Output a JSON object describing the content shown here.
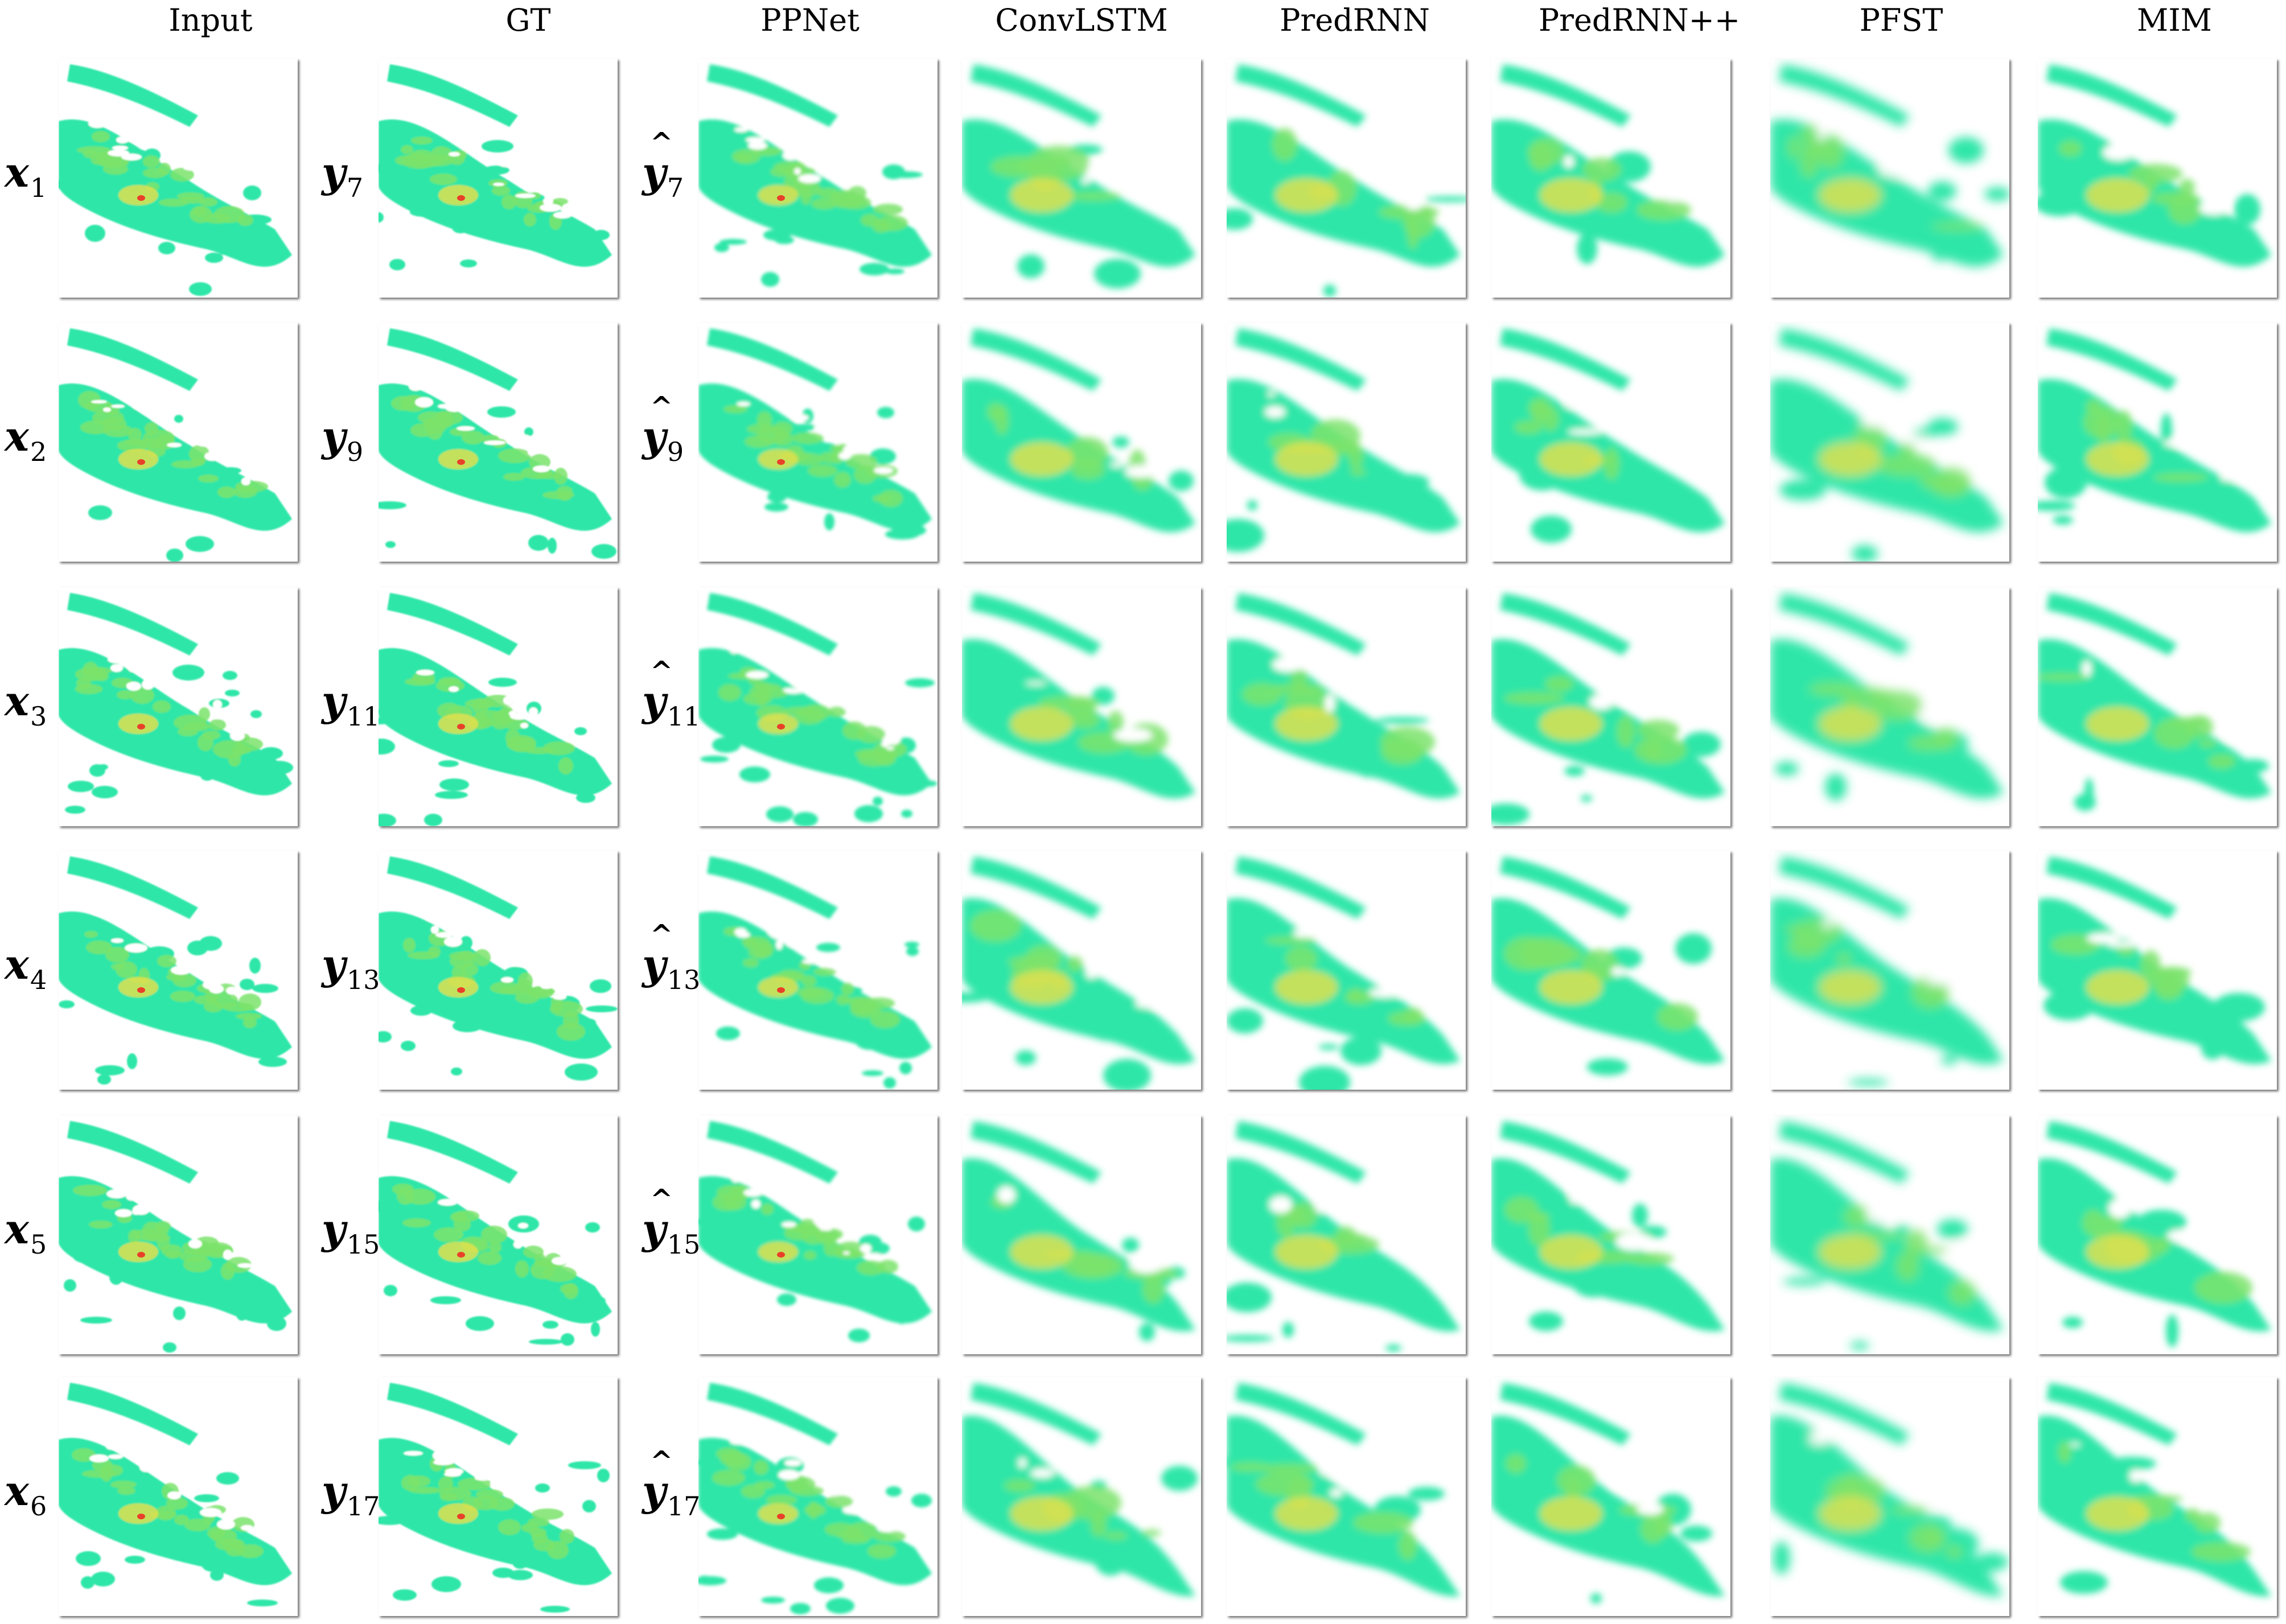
{
  "columns": [
    {
      "label": "Input"
    },
    {
      "label": "GT"
    },
    {
      "label": "PPNet"
    },
    {
      "label": "ConvLSTM"
    },
    {
      "label": "PredRNN"
    },
    {
      "label": "PredRNN++"
    },
    {
      "label": "PFST"
    },
    {
      "label": "MIM"
    }
  ],
  "rows": [
    {
      "input": {
        "sym": "x",
        "sub": "1"
      },
      "gt": {
        "sym": "y",
        "sub": "7"
      },
      "pred": {
        "sym": "y",
        "sub": "7"
      }
    },
    {
      "input": {
        "sym": "x",
        "sub": "2"
      },
      "gt": {
        "sym": "y",
        "sub": "9"
      },
      "pred": {
        "sym": "y",
        "sub": "9"
      }
    },
    {
      "input": {
        "sym": "x",
        "sub": "3"
      },
      "gt": {
        "sym": "y",
        "sub": "11"
      },
      "pred": {
        "sym": "y",
        "sub": "11"
      }
    },
    {
      "input": {
        "sym": "x",
        "sub": "4"
      },
      "gt": {
        "sym": "y",
        "sub": "13"
      },
      "pred": {
        "sym": "y",
        "sub": "13"
      }
    },
    {
      "input": {
        "sym": "x",
        "sub": "5"
      },
      "gt": {
        "sym": "y",
        "sub": "15"
      },
      "pred": {
        "sym": "y",
        "sub": "15"
      }
    },
    {
      "input": {
        "sym": "x",
        "sub": "6"
      },
      "gt": {
        "sym": "y",
        "sub": "17"
      },
      "pred": {
        "sym": "y",
        "sub": "17"
      }
    }
  ],
  "colors": {
    "low": "#2ee6a8",
    "mid": "#7be36b",
    "high": "#e8e04a",
    "peak": "#e8402a"
  }
}
